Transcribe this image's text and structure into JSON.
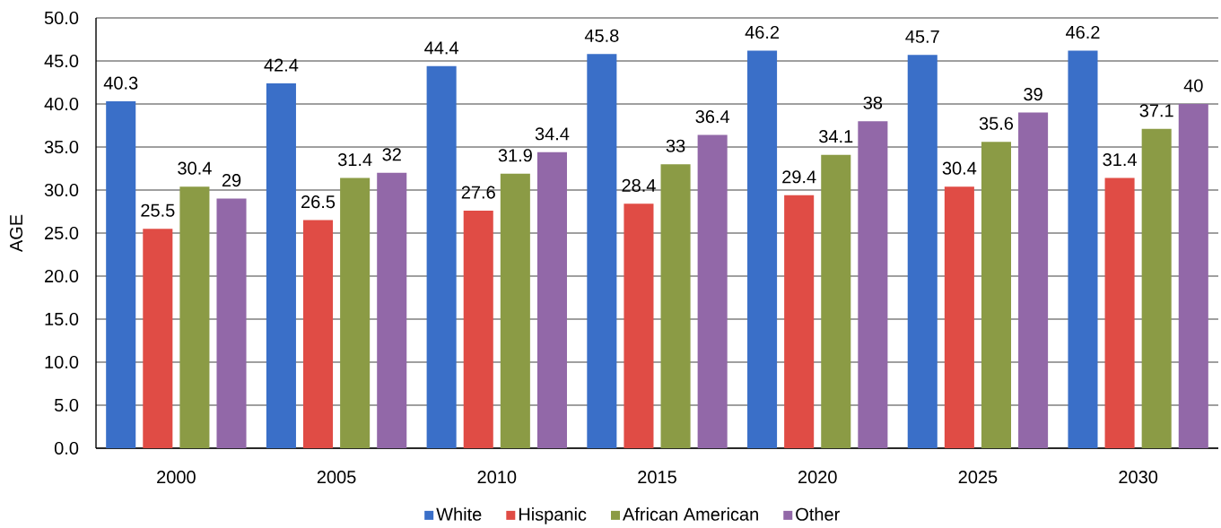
{
  "chart_data": {
    "type": "bar",
    "ylabel": "AGE",
    "categories": [
      "2000",
      "2005",
      "2010",
      "2015",
      "2020",
      "2025",
      "2030"
    ],
    "series": [
      {
        "name": "White",
        "color": "#3a6fc8",
        "values": [
          40.3,
          42.4,
          44.4,
          45.8,
          46.2,
          45.7,
          46.2
        ]
      },
      {
        "name": "Hispanic",
        "color": "#e04c45",
        "values": [
          25.5,
          26.5,
          27.6,
          28.4,
          29.4,
          30.4,
          31.4
        ]
      },
      {
        "name": "African American",
        "color": "#8b9b45",
        "values": [
          30.4,
          31.4,
          31.9,
          33,
          34.1,
          35.6,
          37.1
        ]
      },
      {
        "name": "Other",
        "color": "#9268a8",
        "values": [
          29,
          32,
          34.4,
          36.4,
          38,
          39,
          40
        ]
      }
    ],
    "ylim": [
      0,
      50
    ],
    "yticks": [
      {
        "value": 0,
        "label": "0.0"
      },
      {
        "value": 5,
        "label": "5.0"
      },
      {
        "value": 10,
        "label": "10.0"
      },
      {
        "value": 15,
        "label": "15.0"
      },
      {
        "value": 20,
        "label": "20.0"
      },
      {
        "value": 25,
        "label": "25.0"
      },
      {
        "value": 30,
        "label": "30.0"
      },
      {
        "value": 35,
        "label": "35.0"
      },
      {
        "value": 40,
        "label": "40.0"
      },
      {
        "value": 45,
        "label": "45.0"
      },
      {
        "value": 50,
        "label": "50.0"
      }
    ],
    "grid": "y",
    "legend": "bottom",
    "data_labels": true
  }
}
